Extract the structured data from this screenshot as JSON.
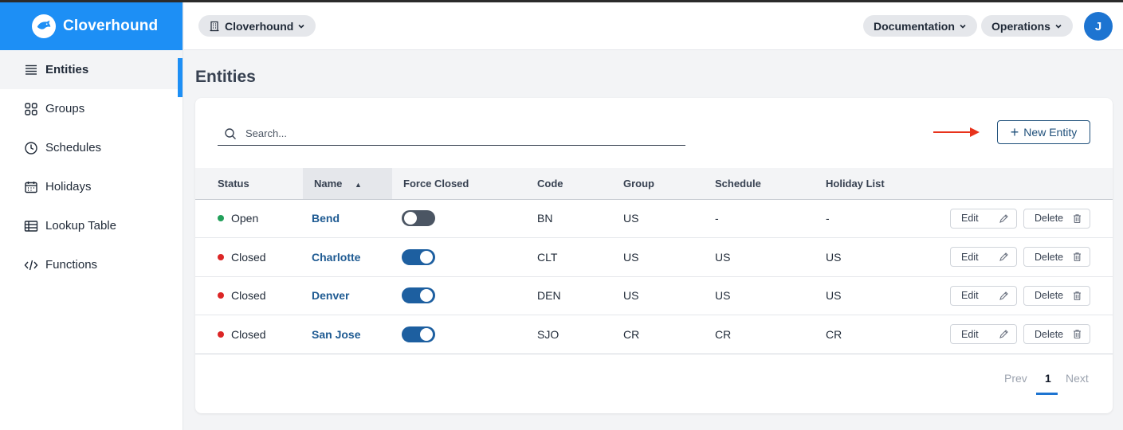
{
  "brand": {
    "name": "Cloverhound"
  },
  "sidebar": {
    "items": [
      {
        "label": "Entities",
        "icon": "list-icon",
        "active": true
      },
      {
        "label": "Groups",
        "icon": "grid-icon",
        "active": false
      },
      {
        "label": "Schedules",
        "icon": "clock-icon",
        "active": false
      },
      {
        "label": "Holidays",
        "icon": "calendar-icon",
        "active": false
      },
      {
        "label": "Lookup Table",
        "icon": "table-icon",
        "active": false
      },
      {
        "label": "Functions",
        "icon": "code-icon",
        "active": false
      }
    ]
  },
  "header": {
    "org_label": "Cloverhound",
    "documentation_label": "Documentation",
    "operations_label": "Operations",
    "avatar_initial": "J"
  },
  "page": {
    "title": "Entities"
  },
  "search": {
    "placeholder": "Search...",
    "value": ""
  },
  "toolbar": {
    "new_entity_label": "New Entity"
  },
  "table": {
    "columns": [
      "Status",
      "Name",
      "Force Closed",
      "Code",
      "Group",
      "Schedule",
      "Holiday List"
    ],
    "sort_column": "Name",
    "rows": [
      {
        "status": "Open",
        "status_color": "#22a05a",
        "name": "Bend",
        "force_closed": false,
        "code": "BN",
        "group": "US",
        "schedule": "-",
        "holiday_list": "-"
      },
      {
        "status": "Closed",
        "status_color": "#dc2626",
        "name": "Charlotte",
        "force_closed": true,
        "code": "CLT",
        "group": "US",
        "schedule": "US",
        "holiday_list": "US"
      },
      {
        "status": "Closed",
        "status_color": "#dc2626",
        "name": "Denver",
        "force_closed": true,
        "code": "DEN",
        "group": "US",
        "schedule": "US",
        "holiday_list": "US"
      },
      {
        "status": "Closed",
        "status_color": "#dc2626",
        "name": "San Jose",
        "force_closed": true,
        "code": "SJO",
        "group": "CR",
        "schedule": "CR",
        "holiday_list": "CR"
      }
    ],
    "edit_label": "Edit",
    "delete_label": "Delete"
  },
  "pagination": {
    "prev_label": "Prev",
    "current_page": "1",
    "next_label": "Next"
  },
  "colors": {
    "brand": "#1d8ff5",
    "accent": "#1e5a92",
    "open": "#22a05a",
    "closed": "#dc2626",
    "annotation_arrow": "#e8321b"
  }
}
